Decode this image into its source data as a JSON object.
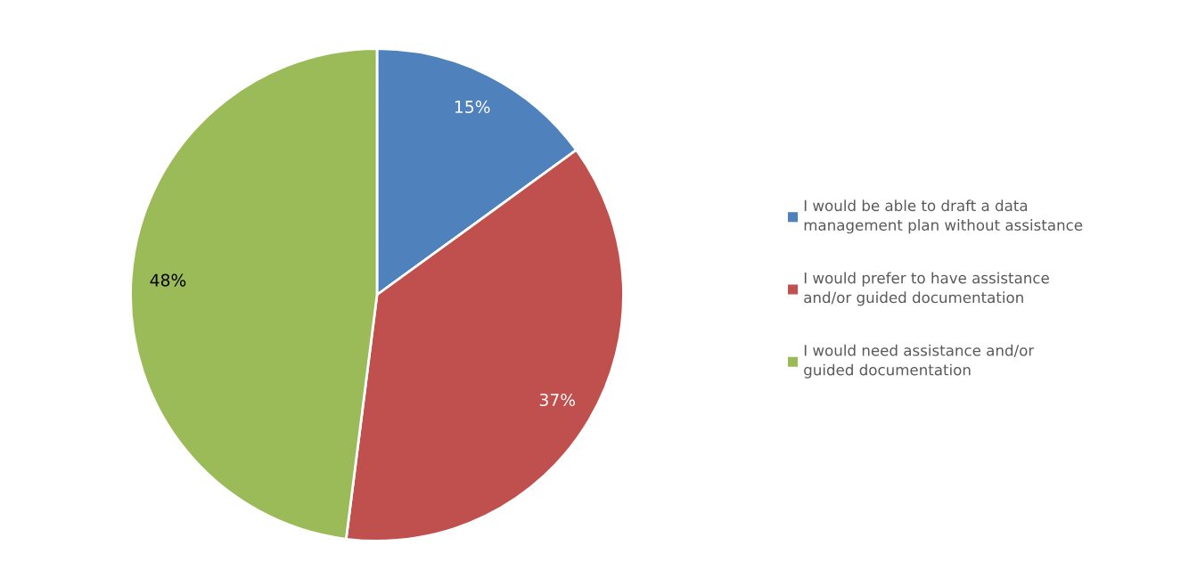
{
  "chart_data": {
    "type": "pie",
    "categories": [
      "I would be able to draft a data\nmanagement plan without assistance",
      "I would prefer to have assistance\nand/or guided documentation",
      "I would need assistance and/or\nguided documentation"
    ],
    "values": [
      15,
      37,
      48
    ],
    "colors": [
      "#4f81bd",
      "#c0504d",
      "#9bbb59"
    ],
    "value_labels": [
      "15%",
      "37%",
      "48%"
    ],
    "legend": "right"
  }
}
